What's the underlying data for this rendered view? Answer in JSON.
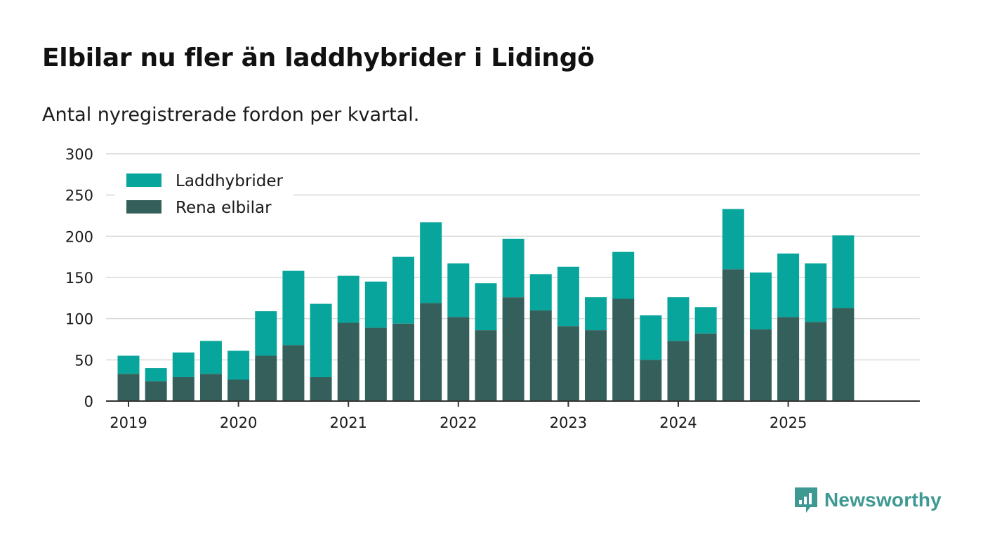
{
  "title": "Elbilar nu fler än laddhybrider i Lidingö",
  "subtitle": "Antal nyregistrerade fordon per kvartal.",
  "brand": {
    "name": "Newsworthy"
  },
  "colors": {
    "laddhybrider": "#07a59b",
    "elbilar": "#355f5a",
    "grid": "#d9d9d9",
    "axis": "#333333",
    "brand": "#3e9992"
  },
  "chart_data": {
    "type": "bar",
    "stacked": true,
    "title": "Elbilar nu fler än laddhybrider i Lidingö",
    "subtitle": "Antal nyregistrerade fordon per kvartal.",
    "xlabel": "",
    "ylabel": "",
    "ylim": [
      0,
      300
    ],
    "yticks": [
      "0",
      "50",
      "100",
      "150",
      "200",
      "250",
      "300"
    ],
    "xticks": [
      {
        "label": "2019",
        "position": 0
      },
      {
        "label": "2020",
        "position": 4
      },
      {
        "label": "2021",
        "position": 8
      },
      {
        "label": "2022",
        "position": 12
      },
      {
        "label": "2023",
        "position": 16
      },
      {
        "label": "2024",
        "position": 20
      },
      {
        "label": "2025",
        "position": 24
      }
    ],
    "categories": [
      "2019 Q1",
      "2019 Q2",
      "2019 Q3",
      "2019 Q4",
      "2020 Q1",
      "2020 Q2",
      "2020 Q3",
      "2020 Q4",
      "2021 Q1",
      "2021 Q2",
      "2021 Q3",
      "2021 Q4",
      "2022 Q1",
      "2022 Q2",
      "2022 Q3",
      "2022 Q4",
      "2023 Q1",
      "2023 Q2",
      "2023 Q3",
      "2023 Q4",
      "2024 Q1",
      "2024 Q2",
      "2024 Q3",
      "2024 Q4",
      "2025 Q1",
      "2025 Q2",
      "2025 Q3",
      "2025 Q4"
    ],
    "legend_position": "top-left",
    "series": [
      {
        "name": "Rena elbilar",
        "color": "#355f5a",
        "values": [
          33,
          24,
          29,
          33,
          26,
          55,
          68,
          29,
          95,
          89,
          94,
          119,
          102,
          86,
          126,
          110,
          91,
          86,
          124,
          50,
          73,
          82,
          160,
          87,
          102,
          96,
          113,
          0
        ]
      },
      {
        "name": "Laddhybrider",
        "color": "#07a59b",
        "values": [
          22,
          16,
          30,
          40,
          35,
          54,
          90,
          89,
          57,
          56,
          81,
          98,
          65,
          57,
          71,
          44,
          72,
          40,
          57,
          54,
          53,
          32,
          73,
          69,
          77,
          71,
          88,
          0
        ]
      }
    ],
    "legend": [
      "Laddhybrider",
      "Rena elbilar"
    ]
  }
}
